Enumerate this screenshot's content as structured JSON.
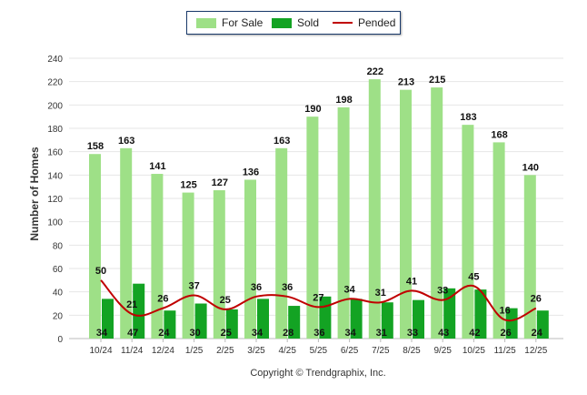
{
  "chart_data": {
    "type": "bar",
    "categories": [
      "10/24",
      "11/24",
      "12/24",
      "1/25",
      "2/25",
      "3/25",
      "4/25",
      "5/25",
      "6/25",
      "7/25",
      "8/25",
      "9/25",
      "10/25",
      "11/25",
      "12/25"
    ],
    "series": [
      {
        "name": "For Sale",
        "type": "bar",
        "color": "#9ee087",
        "values": [
          158,
          163,
          141,
          125,
          127,
          136,
          163,
          190,
          198,
          222,
          213,
          215,
          183,
          168,
          140
        ]
      },
      {
        "name": "Sold",
        "type": "bar",
        "color": "#13a323",
        "values": [
          34,
          47,
          24,
          30,
          25,
          34,
          28,
          36,
          34,
          31,
          33,
          43,
          42,
          26,
          24
        ]
      },
      {
        "name": "Pended",
        "type": "line",
        "color": "#c00000",
        "values": [
          50,
          21,
          26,
          37,
          25,
          36,
          36,
          27,
          34,
          31,
          41,
          33,
          45,
          16,
          26
        ]
      }
    ],
    "ylabel": "Number of Homes",
    "xlabel": "",
    "ylim": [
      0,
      240
    ],
    "yticks": [
      0,
      20,
      40,
      60,
      80,
      100,
      120,
      140,
      160,
      180,
      200,
      220,
      240
    ],
    "grid": true,
    "legend": "top-center"
  },
  "legend": {
    "for_sale": "For Sale",
    "sold": "Sold",
    "pended": "Pended"
  },
  "copyright": "Copyright © Trendgraphix, Inc."
}
